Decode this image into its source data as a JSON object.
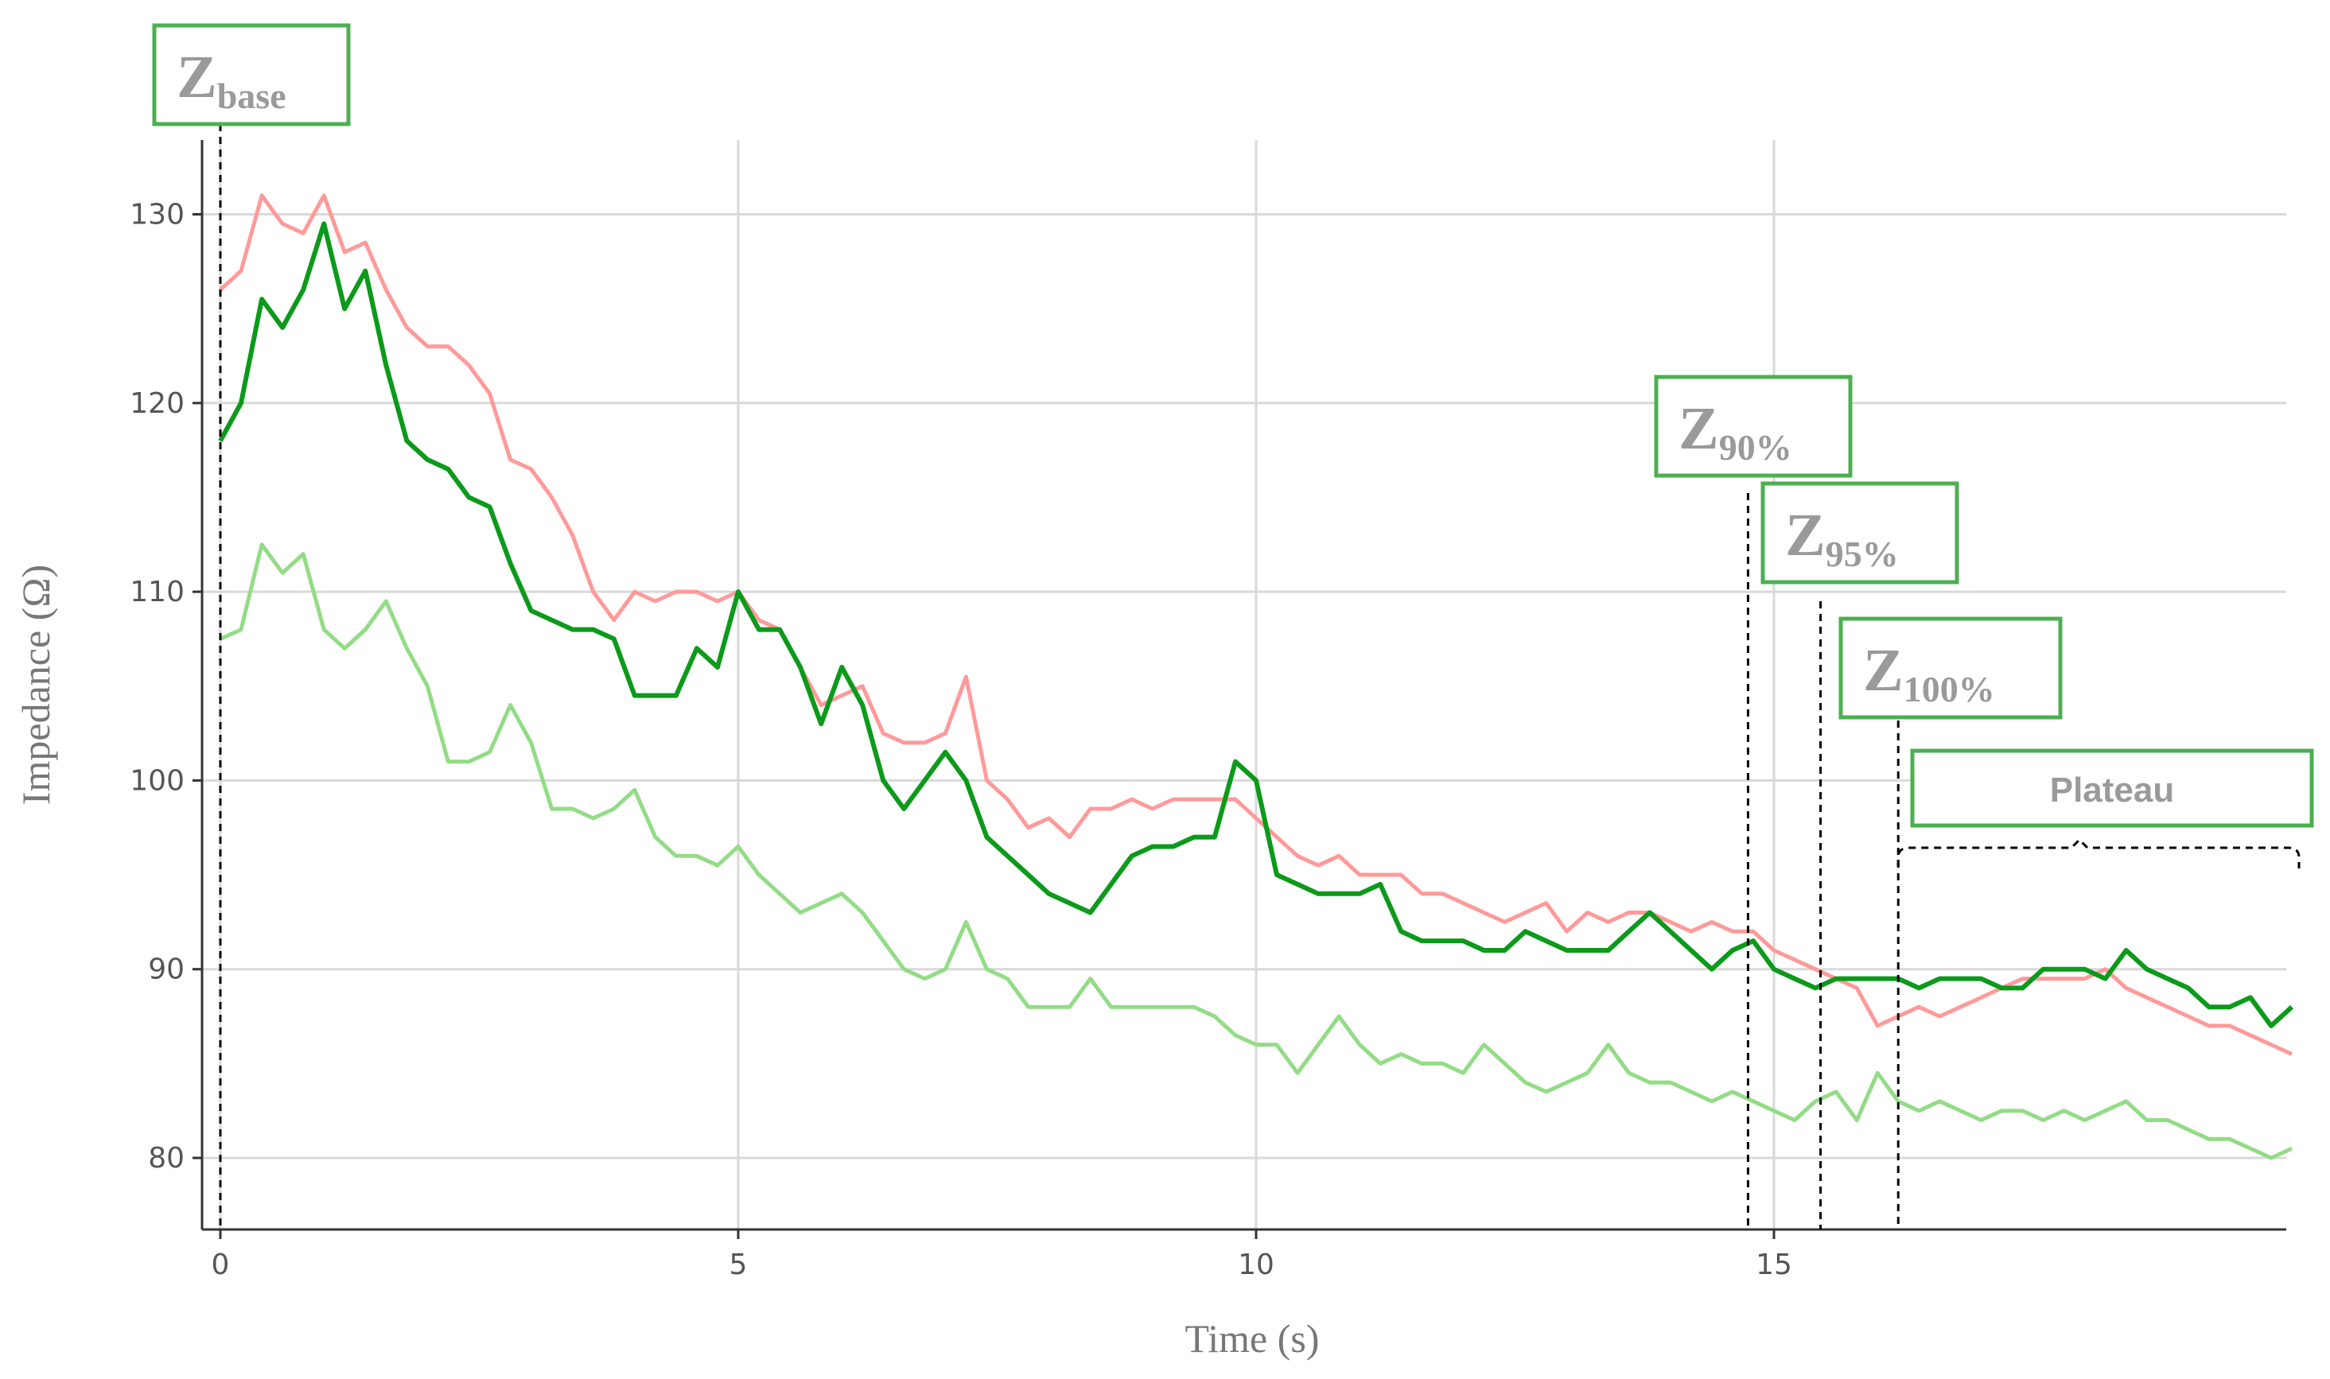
{
  "colors": {
    "dark_green": "#0b9a1a",
    "light_green": "#93dc86",
    "pink": "#ff9a9a",
    "grid": "#d9d9d9",
    "axis": "#333333",
    "annotation_border": "#4caf50",
    "annotation_text": "#9a9a9a"
  },
  "chart_data": {
    "type": "line",
    "xlabel": "Time (s)",
    "ylabel": "Impedance (Ω)",
    "xlim": [
      0,
      20
    ],
    "ylim": [
      76,
      136
    ],
    "xticks": [
      "0",
      "5",
      "10",
      "15"
    ],
    "yticks": [
      "80",
      "90",
      "100",
      "110",
      "120",
      "130"
    ],
    "grid": true,
    "legend": "none",
    "series": [
      {
        "color": "#ff9a9a",
        "x": [
          0,
          0.2,
          0.4,
          0.6,
          0.8,
          1.0,
          1.2,
          1.4,
          1.6,
          1.8,
          2.0,
          2.2,
          2.4,
          2.6,
          2.8,
          3.0,
          3.2,
          3.4,
          3.6,
          3.8,
          4.0,
          4.2,
          4.4,
          4.6,
          4.8,
          5.0,
          5.2,
          5.4,
          5.6,
          5.8,
          6.0,
          6.2,
          6.4,
          6.6,
          6.8,
          7.0,
          7.2,
          7.4,
          7.6,
          7.8,
          8.0,
          8.2,
          8.4,
          8.6,
          8.8,
          9.0,
          9.2,
          9.4,
          9.6,
          9.8,
          10.0,
          10.2,
          10.4,
          10.6,
          10.8,
          11.0,
          11.2,
          11.4,
          11.6,
          11.8,
          12.0,
          12.2,
          12.4,
          12.6,
          12.8,
          13.0,
          13.2,
          13.4,
          13.6,
          13.8,
          14.0,
          14.2,
          14.4,
          14.6,
          14.8,
          15.0,
          15.2,
          15.4,
          15.6,
          15.8,
          16.0,
          16.2,
          16.4,
          16.6,
          16.8,
          17.0,
          17.2,
          17.4,
          17.6,
          17.8,
          18.0,
          18.2,
          18.4,
          18.6,
          18.8,
          19.0,
          19.2,
          19.4,
          19.6,
          19.8,
          20.0
        ],
        "y": [
          126,
          127,
          131,
          129.5,
          129,
          131,
          128,
          128.5,
          126,
          124,
          123,
          123,
          122,
          120.5,
          117,
          116.5,
          115,
          113,
          110,
          108.5,
          110,
          109.5,
          110,
          110,
          109.5,
          110,
          108.5,
          108,
          106,
          104,
          104.5,
          105,
          102.5,
          102,
          102,
          102.5,
          105.5,
          100,
          99,
          97.5,
          98,
          97,
          98.5,
          98.5,
          99,
          98.5,
          99,
          99,
          99,
          99,
          98,
          97,
          96,
          95.5,
          96,
          95,
          95,
          95,
          94,
          94,
          93.5,
          93,
          92.5,
          93,
          93.5,
          92,
          93,
          92.5,
          93,
          93,
          92.5,
          92,
          92.5,
          92,
          92,
          91,
          90.5,
          90,
          89.5,
          89,
          87,
          87.5,
          88,
          87.5,
          88,
          88.5,
          89,
          89.5,
          89.5,
          89.5,
          89.5,
          90,
          89,
          88.5,
          88,
          87.5,
          87,
          87,
          86.5,
          86,
          85.5
        ]
      },
      {
        "color": "#0b9a1a",
        "x": [
          0,
          0.2,
          0.4,
          0.6,
          0.8,
          1.0,
          1.2,
          1.4,
          1.6,
          1.8,
          2.0,
          2.2,
          2.4,
          2.6,
          2.8,
          3.0,
          3.2,
          3.4,
          3.6,
          3.8,
          4.0,
          4.2,
          4.4,
          4.6,
          4.8,
          5.0,
          5.2,
          5.4,
          5.6,
          5.8,
          6.0,
          6.2,
          6.4,
          6.6,
          6.8,
          7.0,
          7.2,
          7.4,
          7.6,
          7.8,
          8.0,
          8.2,
          8.4,
          8.6,
          8.8,
          9.0,
          9.2,
          9.4,
          9.6,
          9.8,
          10.0,
          10.2,
          10.4,
          10.6,
          10.8,
          11.0,
          11.2,
          11.4,
          11.6,
          11.8,
          12.0,
          12.2,
          12.4,
          12.6,
          12.8,
          13.0,
          13.2,
          13.4,
          13.6,
          13.8,
          14.0,
          14.2,
          14.4,
          14.6,
          14.8,
          15.0,
          15.2,
          15.4,
          15.6,
          15.8,
          16.0,
          16.2,
          16.4,
          16.6,
          16.8,
          17.0,
          17.2,
          17.4,
          17.6,
          17.8,
          18.0,
          18.2,
          18.4,
          18.6,
          18.8,
          19.0,
          19.2,
          19.4,
          19.6,
          19.8,
          20.0
        ],
        "y": [
          118,
          120,
          125.5,
          124,
          126,
          129.5,
          125,
          127,
          122,
          118,
          117,
          116.5,
          115,
          114.5,
          111.5,
          109,
          108.5,
          108,
          108,
          107.5,
          104.5,
          104.5,
          104.5,
          107,
          106,
          110,
          108,
          108,
          106,
          103,
          106,
          104,
          100,
          98.5,
          100,
          101.5,
          100,
          97,
          96,
          95,
          94,
          93.5,
          93,
          94.5,
          96,
          96.5,
          96.5,
          97,
          97,
          101,
          100,
          95,
          94.5,
          94,
          94,
          94,
          94.5,
          92,
          91.5,
          91.5,
          91.5,
          91,
          91,
          92,
          91.5,
          91,
          91,
          91,
          92,
          93,
          92,
          91,
          90,
          91,
          91.5,
          90,
          89.5,
          89,
          89.5,
          89.5,
          89.5,
          89.5,
          89,
          89.5,
          89.5,
          89.5,
          89,
          89,
          90,
          90,
          90,
          89.5,
          91,
          90,
          89.5,
          89,
          88,
          88,
          88.5,
          87,
          88
        ]
      },
      {
        "color": "#93dc86",
        "x": [
          0,
          0.2,
          0.4,
          0.6,
          0.8,
          1.0,
          1.2,
          1.4,
          1.6,
          1.8,
          2.0,
          2.2,
          2.4,
          2.6,
          2.8,
          3.0,
          3.2,
          3.4,
          3.6,
          3.8,
          4.0,
          4.2,
          4.4,
          4.6,
          4.8,
          5.0,
          5.2,
          5.4,
          5.6,
          5.8,
          6.0,
          6.2,
          6.4,
          6.6,
          6.8,
          7.0,
          7.2,
          7.4,
          7.6,
          7.8,
          8.0,
          8.2,
          8.4,
          8.6,
          8.8,
          9.0,
          9.2,
          9.4,
          9.6,
          9.8,
          10.0,
          10.2,
          10.4,
          10.6,
          10.8,
          11.0,
          11.2,
          11.4,
          11.6,
          11.8,
          12.0,
          12.2,
          12.4,
          12.6,
          12.8,
          13.0,
          13.2,
          13.4,
          13.6,
          13.8,
          14.0,
          14.2,
          14.4,
          14.6,
          14.8,
          15.0,
          15.2,
          15.4,
          15.6,
          15.8,
          16.0,
          16.2,
          16.4,
          16.6,
          16.8,
          17.0,
          17.2,
          17.4,
          17.6,
          17.8,
          18.0,
          18.2,
          18.4,
          18.6,
          18.8,
          19.0,
          19.2,
          19.4,
          19.6,
          19.8,
          20.0
        ],
        "y": [
          107.5,
          108,
          112.5,
          111,
          112,
          108,
          107,
          108,
          109.5,
          107,
          105,
          101,
          101,
          101.5,
          104,
          102,
          98.5,
          98.5,
          98,
          98.5,
          99.5,
          97,
          96,
          96,
          95.5,
          96.5,
          95,
          94,
          93,
          93.5,
          94,
          93,
          91.5,
          90,
          89.5,
          90,
          92.5,
          90,
          89.5,
          88,
          88,
          88,
          89.5,
          88,
          88,
          88,
          88,
          88,
          87.5,
          86.5,
          86,
          86,
          84.5,
          86,
          87.5,
          86,
          85,
          85.5,
          85,
          85,
          84.5,
          86,
          85,
          84,
          83.5,
          84,
          84.5,
          86,
          84.5,
          84,
          84,
          83.5,
          83,
          83.5,
          83,
          82.5,
          82,
          83,
          83.5,
          82,
          84.5,
          83,
          82.5,
          83,
          82.5,
          82,
          82.5,
          82.5,
          82,
          82.5,
          82,
          82.5,
          83,
          82,
          82,
          81.5,
          81,
          81,
          80.5,
          80,
          80.5
        ]
      }
    ],
    "annotations": [
      {
        "id": "z-base",
        "symbol": "Z",
        "subscript": "base",
        "marker_x": 0.0
      },
      {
        "id": "z-90",
        "symbol": "Z",
        "subscript": "90%",
        "marker_x": 14.75
      },
      {
        "id": "z-95",
        "symbol": "Z",
        "subscript": "95%",
        "marker_x": 15.45
      },
      {
        "id": "z-100",
        "symbol": "Z",
        "subscript": "100%",
        "marker_x": 16.2
      },
      {
        "id": "plateau",
        "label": "Plateau",
        "range": [
          16.2,
          20
        ]
      }
    ]
  }
}
